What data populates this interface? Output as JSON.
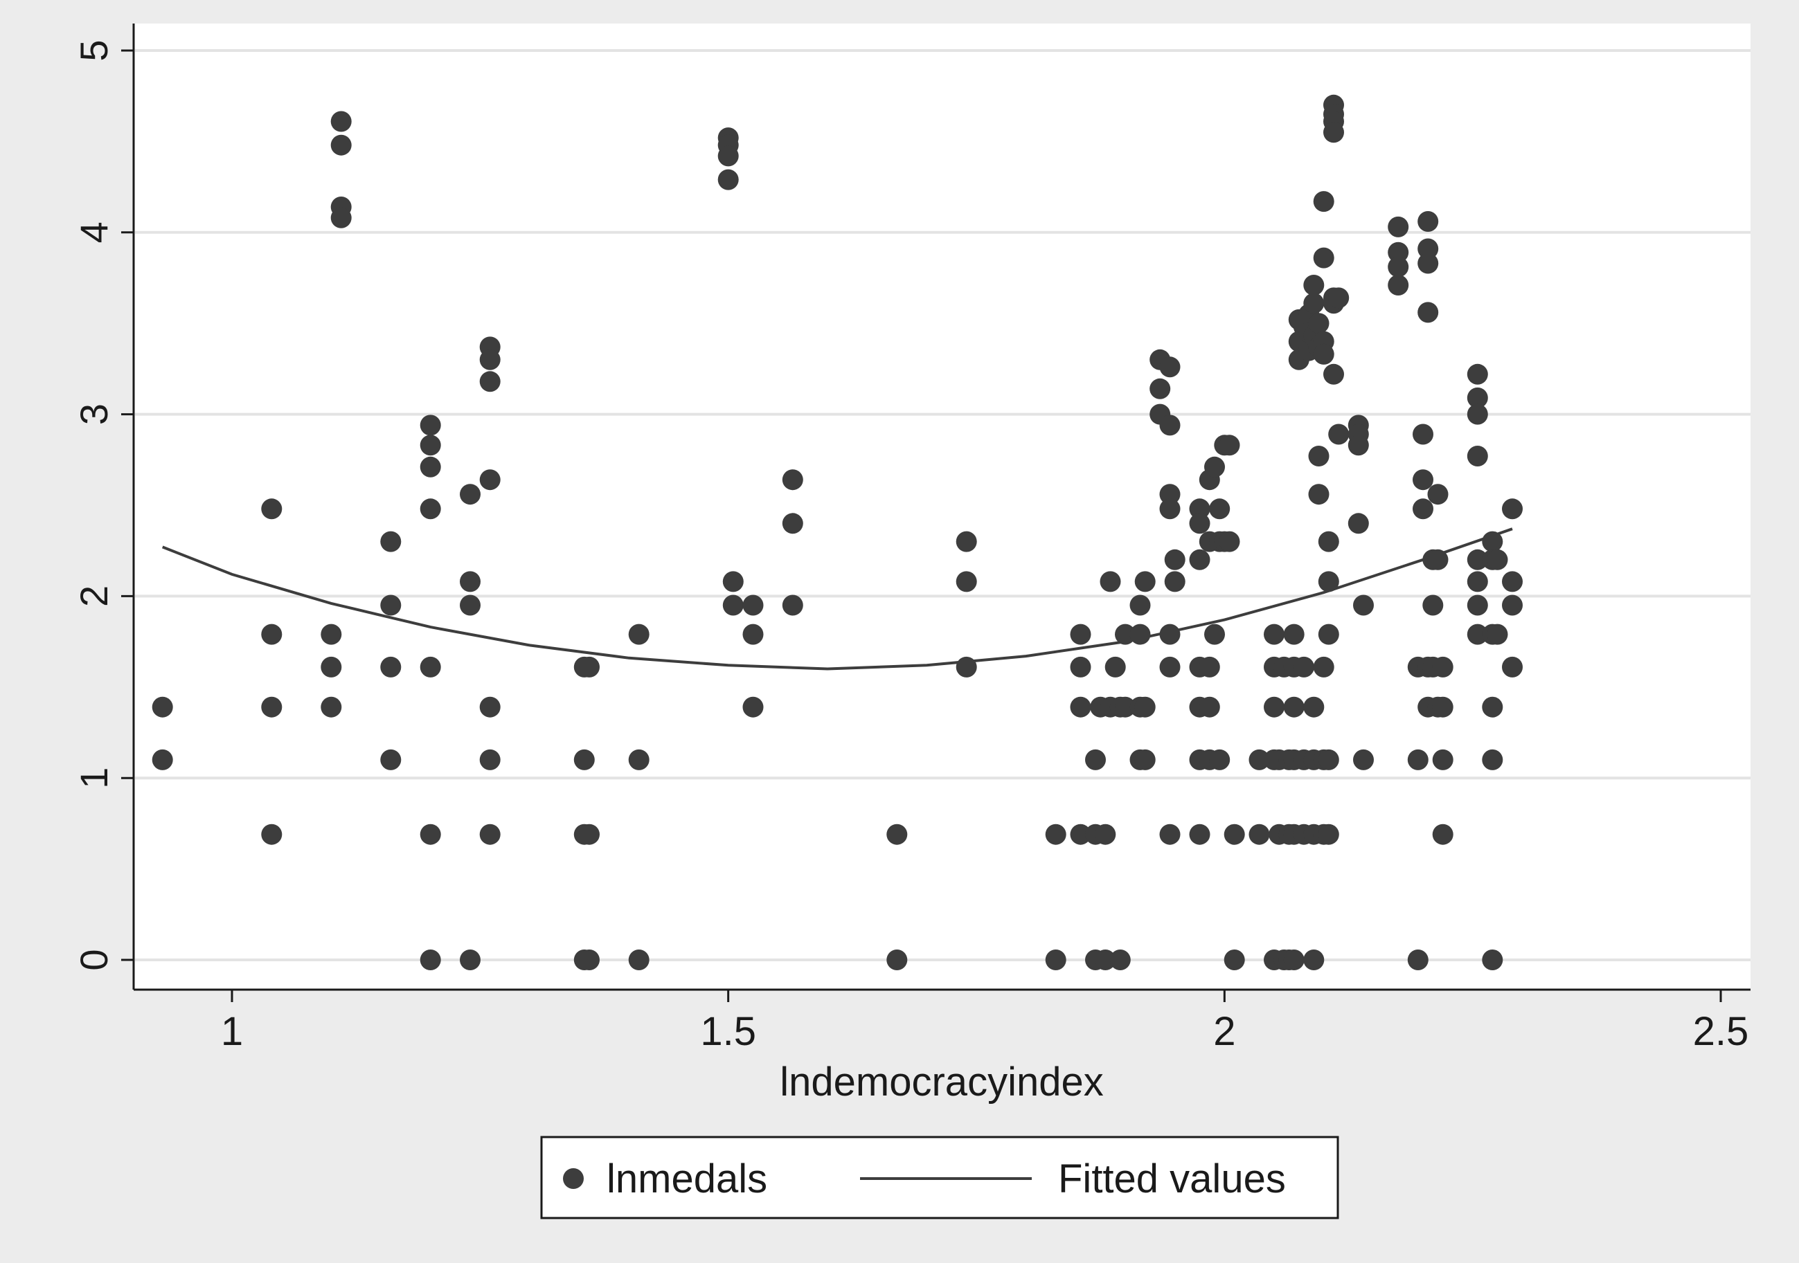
{
  "chart_data": {
    "type": "scatter",
    "title": "",
    "xlabel": "lndemocracyindex",
    "ylabel": "",
    "xlim": [
      0.9,
      2.5
    ],
    "ylim": [
      -0.15,
      5.15
    ],
    "xticks": [
      "1",
      "1.5",
      "2",
      "2.5"
    ],
    "yticks": [
      "0",
      "1",
      "2",
      "3",
      "4",
      "5"
    ],
    "grid": "horizontal",
    "colors": {
      "marker": "#3d3d3d",
      "line": "#3d3d3d",
      "grid": "#e3e3e3",
      "plot_bg": "#ffffff",
      "page_bg": "#ececec"
    },
    "legend": {
      "position": "bottom",
      "entries": [
        {
          "label": "lnmedals",
          "kind": "marker"
        },
        {
          "label": "Fitted values",
          "kind": "line"
        }
      ]
    },
    "series": [
      {
        "name": "lnmedals",
        "kind": "scatter",
        "points": [
          [
            0.93,
            1.39
          ],
          [
            0.93,
            1.1
          ],
          [
            1.04,
            2.48
          ],
          [
            1.04,
            1.79
          ],
          [
            1.04,
            1.39
          ],
          [
            1.04,
            0.69
          ],
          [
            1.1,
            1.79
          ],
          [
            1.1,
            1.61
          ],
          [
            1.1,
            1.39
          ],
          [
            1.11,
            4.61
          ],
          [
            1.11,
            4.48
          ],
          [
            1.11,
            4.14
          ],
          [
            1.11,
            4.08
          ],
          [
            1.16,
            2.3
          ],
          [
            1.16,
            1.95
          ],
          [
            1.16,
            1.61
          ],
          [
            1.16,
            1.1
          ],
          [
            1.2,
            2.94
          ],
          [
            1.2,
            2.83
          ],
          [
            1.2,
            2.71
          ],
          [
            1.2,
            2.48
          ],
          [
            1.2,
            1.61
          ],
          [
            1.2,
            0.69
          ],
          [
            1.2,
            0
          ],
          [
            1.24,
            2.56
          ],
          [
            1.24,
            2.08
          ],
          [
            1.24,
            1.95
          ],
          [
            1.24,
            0
          ],
          [
            1.26,
            3.37
          ],
          [
            1.26,
            3.3
          ],
          [
            1.26,
            3.18
          ],
          [
            1.26,
            2.64
          ],
          [
            1.26,
            1.39
          ],
          [
            1.26,
            1.1
          ],
          [
            1.26,
            0.69
          ],
          [
            1.355,
            1.61
          ],
          [
            1.36,
            1.61
          ],
          [
            1.355,
            1.1
          ],
          [
            1.355,
            0.69
          ],
          [
            1.36,
            0.69
          ],
          [
            1.355,
            0
          ],
          [
            1.36,
            0
          ],
          [
            1.41,
            1.79
          ],
          [
            1.41,
            1.1
          ],
          [
            1.41,
            0
          ],
          [
            1.5,
            4.52
          ],
          [
            1.5,
            4.48
          ],
          [
            1.5,
            4.42
          ],
          [
            1.5,
            4.29
          ],
          [
            1.505,
            2.08
          ],
          [
            1.505,
            1.95
          ],
          [
            1.525,
            1.95
          ],
          [
            1.525,
            1.79
          ],
          [
            1.525,
            1.39
          ],
          [
            1.565,
            2.64
          ],
          [
            1.565,
            2.4
          ],
          [
            1.565,
            1.95
          ],
          [
            1.67,
            0.69
          ],
          [
            1.67,
            0
          ],
          [
            1.74,
            2.3
          ],
          [
            1.74,
            2.08
          ],
          [
            1.74,
            1.61
          ],
          [
            1.83,
            0.69
          ],
          [
            1.83,
            0
          ],
          [
            1.855,
            1.79
          ],
          [
            1.855,
            1.61
          ],
          [
            1.855,
            1.39
          ],
          [
            1.855,
            0.69
          ],
          [
            1.87,
            1.1
          ],
          [
            1.87,
            0.69
          ],
          [
            1.87,
            0
          ],
          [
            1.875,
            1.39
          ],
          [
            1.88,
            0
          ],
          [
            1.88,
            0.69
          ],
          [
            1.885,
            2.08
          ],
          [
            1.885,
            1.39
          ],
          [
            1.89,
            1.61
          ],
          [
            1.895,
            1.39
          ],
          [
            1.895,
            0
          ],
          [
            1.9,
            1.79
          ],
          [
            1.9,
            1.39
          ],
          [
            1.915,
            1.95
          ],
          [
            1.915,
            1.79
          ],
          [
            1.915,
            1.39
          ],
          [
            1.915,
            1.1
          ],
          [
            1.92,
            2.08
          ],
          [
            1.92,
            1.39
          ],
          [
            1.92,
            1.1
          ],
          [
            1.935,
            3.3
          ],
          [
            1.935,
            3.14
          ],
          [
            1.935,
            3.0
          ],
          [
            1.945,
            3.26
          ],
          [
            1.945,
            2.94
          ],
          [
            1.945,
            2.56
          ],
          [
            1.945,
            2.48
          ],
          [
            1.95,
            2.2
          ],
          [
            1.95,
            2.08
          ],
          [
            1.945,
            1.79
          ],
          [
            1.945,
            1.61
          ],
          [
            1.945,
            0.69
          ],
          [
            1.975,
            2.48
          ],
          [
            1.975,
            2.4
          ],
          [
            1.975,
            2.2
          ],
          [
            1.975,
            1.61
          ],
          [
            1.975,
            1.39
          ],
          [
            1.975,
            1.1
          ],
          [
            1.975,
            0.69
          ],
          [
            1.985,
            2.64
          ],
          [
            1.985,
            2.3
          ],
          [
            1.985,
            1.61
          ],
          [
            1.985,
            1.39
          ],
          [
            1.985,
            1.1
          ],
          [
            1.99,
            2.71
          ],
          [
            1.99,
            1.79
          ],
          [
            1.995,
            2.48
          ],
          [
            1.995,
            2.3
          ],
          [
            1.995,
            1.1
          ],
          [
            2.0,
            2.83
          ],
          [
            2.0,
            2.3
          ],
          [
            2.005,
            2.83
          ],
          [
            2.005,
            2.3
          ],
          [
            2.01,
            0.69
          ],
          [
            2.01,
            0
          ],
          [
            2.035,
            1.1
          ],
          [
            2.035,
            0.69
          ],
          [
            2.05,
            1.79
          ],
          [
            2.05,
            1.61
          ],
          [
            2.05,
            1.39
          ],
          [
            2.05,
            1.1
          ],
          [
            2.05,
            0
          ],
          [
            2.055,
            1.1
          ],
          [
            2.055,
            0.69
          ],
          [
            2.06,
            0
          ],
          [
            2.06,
            1.61
          ],
          [
            2.065,
            1.1
          ],
          [
            2.065,
            0.69
          ],
          [
            2.065,
            0
          ],
          [
            2.07,
            1.79
          ],
          [
            2.07,
            1.61
          ],
          [
            2.07,
            1.39
          ],
          [
            2.07,
            1.1
          ],
          [
            2.07,
            0.69
          ],
          [
            2.07,
            0
          ],
          [
            2.075,
            3.52
          ],
          [
            2.075,
            3.4
          ],
          [
            2.075,
            3.3
          ],
          [
            2.08,
            3.48
          ],
          [
            2.08,
            1.61
          ],
          [
            2.08,
            1.1
          ],
          [
            2.08,
            0.69
          ],
          [
            2.085,
            3.55
          ],
          [
            2.085,
            3.45
          ],
          [
            2.085,
            3.35
          ],
          [
            2.09,
            3.71
          ],
          [
            2.09,
            3.61
          ],
          [
            2.09,
            3.43
          ],
          [
            2.09,
            1.39
          ],
          [
            2.09,
            1.1
          ],
          [
            2.09,
            0.69
          ],
          [
            2.09,
            0
          ],
          [
            2.095,
            3.5
          ],
          [
            2.095,
            3.37
          ],
          [
            2.095,
            2.77
          ],
          [
            2.095,
            2.56
          ],
          [
            2.1,
            3.86
          ],
          [
            2.1,
            3.4
          ],
          [
            2.1,
            3.33
          ],
          [
            2.1,
            1.61
          ],
          [
            2.1,
            1.1
          ],
          [
            2.1,
            0.69
          ],
          [
            2.1,
            4.17
          ],
          [
            2.105,
            2.3
          ],
          [
            2.105,
            2.08
          ],
          [
            2.105,
            1.79
          ],
          [
            2.105,
            1.1
          ],
          [
            2.105,
            0.69
          ],
          [
            2.11,
            4.7
          ],
          [
            2.11,
            4.65
          ],
          [
            2.11,
            4.61
          ],
          [
            2.11,
            4.55
          ],
          [
            2.11,
            3.64
          ],
          [
            2.11,
            3.61
          ],
          [
            2.11,
            3.22
          ],
          [
            2.115,
            2.89
          ],
          [
            2.115,
            3.64
          ],
          [
            2.135,
            2.94
          ],
          [
            2.135,
            2.89
          ],
          [
            2.135,
            2.83
          ],
          [
            2.135,
            2.4
          ],
          [
            2.14,
            1.95
          ],
          [
            2.14,
            1.1
          ],
          [
            2.175,
            4.03
          ],
          [
            2.175,
            3.89
          ],
          [
            2.175,
            3.81
          ],
          [
            2.175,
            3.71
          ],
          [
            2.195,
            1.61
          ],
          [
            2.195,
            1.1
          ],
          [
            2.195,
            0
          ],
          [
            2.2,
            2.89
          ],
          [
            2.2,
            2.64
          ],
          [
            2.2,
            2.48
          ],
          [
            2.205,
            4.06
          ],
          [
            2.205,
            3.91
          ],
          [
            2.205,
            3.83
          ],
          [
            2.205,
            3.56
          ],
          [
            2.205,
            1.61
          ],
          [
            2.205,
            1.39
          ],
          [
            2.21,
            2.2
          ],
          [
            2.21,
            1.95
          ],
          [
            2.21,
            1.61
          ],
          [
            2.215,
            2.56
          ],
          [
            2.215,
            2.2
          ],
          [
            2.215,
            1.39
          ],
          [
            2.22,
            1.61
          ],
          [
            2.22,
            1.39
          ],
          [
            2.22,
            1.1
          ],
          [
            2.22,
            0.69
          ],
          [
            2.255,
            3.22
          ],
          [
            2.255,
            3.09
          ],
          [
            2.255,
            3.0
          ],
          [
            2.255,
            2.77
          ],
          [
            2.255,
            2.2
          ],
          [
            2.255,
            2.08
          ],
          [
            2.255,
            1.95
          ],
          [
            2.255,
            1.79
          ],
          [
            2.27,
            2.3
          ],
          [
            2.27,
            2.2
          ],
          [
            2.27,
            1.79
          ],
          [
            2.27,
            1.39
          ],
          [
            2.27,
            1.1
          ],
          [
            2.27,
            0
          ],
          [
            2.275,
            2.2
          ],
          [
            2.275,
            1.79
          ],
          [
            2.29,
            2.48
          ],
          [
            2.29,
            2.08
          ],
          [
            2.29,
            1.95
          ],
          [
            2.29,
            1.61
          ]
        ]
      },
      {
        "name": "Fitted values",
        "kind": "line",
        "points": [
          [
            0.93,
            2.27
          ],
          [
            1.0,
            2.12
          ],
          [
            1.1,
            1.96
          ],
          [
            1.2,
            1.83
          ],
          [
            1.3,
            1.73
          ],
          [
            1.4,
            1.66
          ],
          [
            1.5,
            1.62
          ],
          [
            1.6,
            1.6
          ],
          [
            1.7,
            1.62
          ],
          [
            1.8,
            1.67
          ],
          [
            1.9,
            1.75
          ],
          [
            2.0,
            1.87
          ],
          [
            2.1,
            2.02
          ],
          [
            2.2,
            2.2
          ],
          [
            2.29,
            2.37
          ]
        ]
      }
    ]
  }
}
